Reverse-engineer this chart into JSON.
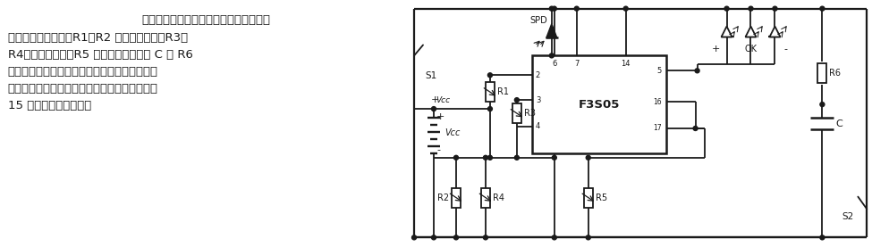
{
  "bg_color": "#ffffff",
  "title_text": "具有电源保持和自动关断功能的照相机测",
  "line1": "光电路　　电路中，R1、R2 用于快门调节，R3、",
  "line2": "R4用于光圈调节，R5 为线性调节，电容 C 和 R6",
  "line3": "为延时元件。该电路具有电源保持和自动关断功",
  "line4": "能，在测光检查时手指离开测光按鈕后继续点亮",
  "line5": "15 秒，然后自动关断。",
  "line_color": "#1a1a1a",
  "lw": 1.3
}
